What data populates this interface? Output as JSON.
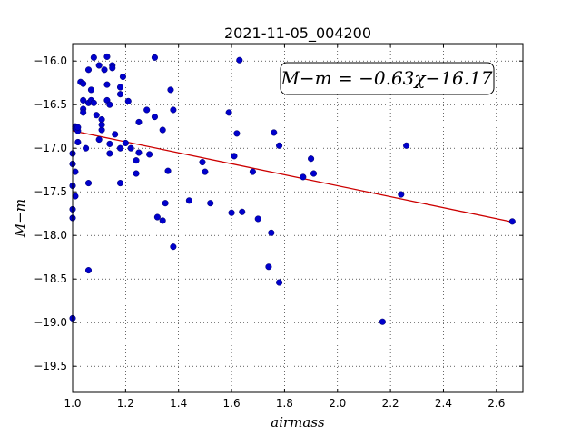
{
  "chart_data": {
    "type": "scatter",
    "title": "2021-11-05_004200",
    "xlabel": "airmass",
    "ylabel": "M−m",
    "xlim": [
      1.0,
      2.7
    ],
    "ylim": [
      -15.8,
      -19.8
    ],
    "y_inverted": true,
    "grid": true,
    "x_ticks": [
      1.0,
      1.2,
      1.4,
      1.6,
      1.8,
      2.0,
      2.2,
      2.4,
      2.6
    ],
    "x_tick_labels": [
      "1.0",
      "1.2",
      "1.4",
      "1.6",
      "1.8",
      "2.0",
      "2.2",
      "2.4",
      "2.6"
    ],
    "y_ticks": [
      -16.0,
      -16.5,
      -17.0,
      -17.5,
      -18.0,
      -18.5,
      -19.0,
      -19.5
    ],
    "y_tick_labels": [
      "−16.0",
      "−16.5",
      "−17.0",
      "−17.5",
      "−18.0",
      "−18.5",
      "−19.0",
      "−19.5"
    ],
    "marker_color": "#0000cc",
    "fit_color": "#cc0000",
    "annotation": "M−m = −0.63χ−16.17",
    "fit": {
      "slope": -0.63,
      "intercept": -16.17,
      "x_range": [
        1.0,
        2.66
      ]
    },
    "points": [
      [
        1.0,
        -18.95
      ],
      [
        1.0,
        -17.06
      ],
      [
        1.0,
        -17.18
      ],
      [
        1.0,
        -17.43
      ],
      [
        1.0,
        -17.7
      ],
      [
        1.0,
        -17.8
      ],
      [
        1.01,
        -16.75
      ],
      [
        1.01,
        -16.77
      ],
      [
        1.01,
        -17.27
      ],
      [
        1.01,
        -17.55
      ],
      [
        1.02,
        -16.8
      ],
      [
        1.02,
        -16.76
      ],
      [
        1.02,
        -16.93
      ],
      [
        1.03,
        -16.24
      ],
      [
        1.04,
        -16.26
      ],
      [
        1.04,
        -16.55
      ],
      [
        1.04,
        -16.59
      ],
      [
        1.04,
        -16.45
      ],
      [
        1.05,
        -17.0
      ],
      [
        1.06,
        -16.48
      ],
      [
        1.06,
        -16.1
      ],
      [
        1.06,
        -17.4
      ],
      [
        1.06,
        -18.4
      ],
      [
        1.07,
        -16.45
      ],
      [
        1.07,
        -16.33
      ],
      [
        1.08,
        -16.48
      ],
      [
        1.08,
        -15.96
      ],
      [
        1.09,
        -16.62
      ],
      [
        1.1,
        -16.05
      ],
      [
        1.1,
        -16.9
      ],
      [
        1.11,
        -16.79
      ],
      [
        1.11,
        -16.73
      ],
      [
        1.11,
        -16.67
      ],
      [
        1.12,
        -16.1
      ],
      [
        1.13,
        -15.95
      ],
      [
        1.13,
        -16.27
      ],
      [
        1.13,
        -16.45
      ],
      [
        1.14,
        -16.5
      ],
      [
        1.14,
        -16.95
      ],
      [
        1.14,
        -17.06
      ],
      [
        1.15,
        -16.05
      ],
      [
        1.15,
        -16.08
      ],
      [
        1.16,
        -16.84
      ],
      [
        1.18,
        -16.3
      ],
      [
        1.18,
        -16.38
      ],
      [
        1.18,
        -17.0
      ],
      [
        1.18,
        -17.4
      ],
      [
        1.19,
        -16.18
      ],
      [
        1.2,
        -16.94
      ],
      [
        1.21,
        -16.46
      ],
      [
        1.22,
        -17.0
      ],
      [
        1.24,
        -17.14
      ],
      [
        1.24,
        -17.29
      ],
      [
        1.25,
        -16.7
      ],
      [
        1.25,
        -17.05
      ],
      [
        1.28,
        -16.56
      ],
      [
        1.29,
        -17.07
      ],
      [
        1.31,
        -15.96
      ],
      [
        1.31,
        -16.64
      ],
      [
        1.32,
        -17.79
      ],
      [
        1.34,
        -16.79
      ],
      [
        1.34,
        -17.83
      ],
      [
        1.35,
        -17.63
      ],
      [
        1.36,
        -17.26
      ],
      [
        1.37,
        -16.33
      ],
      [
        1.38,
        -16.56
      ],
      [
        1.38,
        -18.13
      ],
      [
        1.44,
        -17.6
      ],
      [
        1.49,
        -17.16
      ],
      [
        1.5,
        -17.27
      ],
      [
        1.52,
        -17.63
      ],
      [
        1.59,
        -16.59
      ],
      [
        1.6,
        -17.74
      ],
      [
        1.61,
        -17.09
      ],
      [
        1.62,
        -16.83
      ],
      [
        1.63,
        -15.99
      ],
      [
        1.64,
        -17.73
      ],
      [
        1.68,
        -17.27
      ],
      [
        1.7,
        -17.81
      ],
      [
        1.74,
        -18.36
      ],
      [
        1.75,
        -17.97
      ],
      [
        1.76,
        -16.82
      ],
      [
        1.78,
        -18.54
      ],
      [
        1.78,
        -16.97
      ],
      [
        1.87,
        -17.33
      ],
      [
        1.9,
        -17.12
      ],
      [
        1.91,
        -17.29
      ],
      [
        2.17,
        -18.99
      ],
      [
        2.24,
        -17.53
      ],
      [
        2.26,
        -16.97
      ],
      [
        2.66,
        -17.84
      ]
    ]
  }
}
